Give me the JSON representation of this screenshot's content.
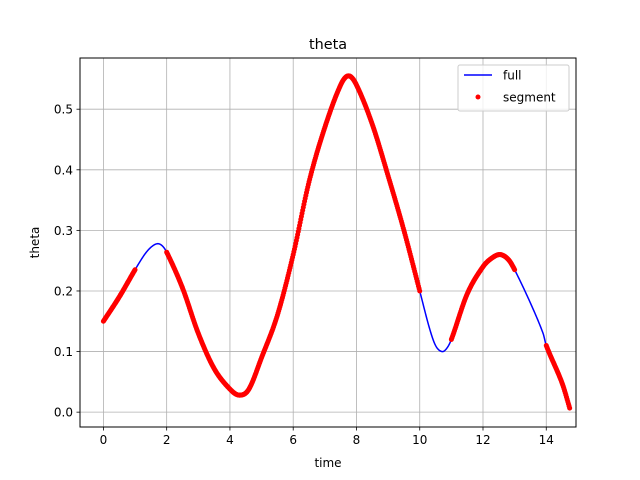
{
  "chart_data": {
    "type": "line",
    "title": "theta",
    "xlabel": "time",
    "ylabel": "theta",
    "xlim": [
      -0.74,
      14.94
    ],
    "ylim": [
      -0.0245,
      0.5845
    ],
    "xticks": [
      0,
      2,
      4,
      6,
      8,
      10,
      12,
      14
    ],
    "yticks": [
      0.0,
      0.1,
      0.2,
      0.3,
      0.4,
      0.5
    ],
    "xtick_labels": [
      "0",
      "2",
      "4",
      "6",
      "8",
      "10",
      "12",
      "14"
    ],
    "ytick_labels": [
      "0.0",
      "0.1",
      "0.2",
      "0.3",
      "0.4",
      "0.5"
    ],
    "grid": true,
    "legend_position": "top-right",
    "colors": {
      "full": "#0000ff",
      "segment": "#ff0000",
      "grid": "#b0b0b0"
    },
    "series": [
      {
        "name": "full",
        "style": "line",
        "points": [
          [
            0.0,
            0.15
          ],
          [
            0.5,
            0.19
          ],
          [
            1.0,
            0.235
          ],
          [
            1.3,
            0.26
          ],
          [
            1.5,
            0.272
          ],
          [
            1.7,
            0.278
          ],
          [
            1.85,
            0.275
          ],
          [
            2.0,
            0.264
          ],
          [
            2.5,
            0.205
          ],
          [
            3.0,
            0.13
          ],
          [
            3.5,
            0.072
          ],
          [
            4.0,
            0.038
          ],
          [
            4.3,
            0.028
          ],
          [
            4.6,
            0.038
          ],
          [
            5.0,
            0.09
          ],
          [
            5.5,
            0.16
          ],
          [
            6.0,
            0.26
          ],
          [
            6.5,
            0.38
          ],
          [
            7.0,
            0.47
          ],
          [
            7.5,
            0.54
          ],
          [
            7.75,
            0.555
          ],
          [
            8.0,
            0.54
          ],
          [
            8.5,
            0.475
          ],
          [
            9.0,
            0.39
          ],
          [
            9.5,
            0.3
          ],
          [
            10.0,
            0.2
          ],
          [
            10.3,
            0.14
          ],
          [
            10.5,
            0.11
          ],
          [
            10.7,
            0.1
          ],
          [
            10.85,
            0.105
          ],
          [
            11.0,
            0.12
          ],
          [
            11.5,
            0.195
          ],
          [
            12.0,
            0.24
          ],
          [
            12.3,
            0.255
          ],
          [
            12.55,
            0.26
          ],
          [
            12.8,
            0.252
          ],
          [
            13.0,
            0.235
          ],
          [
            13.5,
            0.18
          ],
          [
            13.9,
            0.13
          ],
          [
            14.0,
            0.11
          ],
          [
            14.5,
            0.048
          ],
          [
            14.75,
            0.005
          ]
        ]
      },
      {
        "name": "segment",
        "style": "markers",
        "ranges": [
          [
            0.0,
            1.0
          ],
          [
            2.0,
            10.0
          ],
          [
            11.0,
            13.0
          ],
          [
            14.0,
            14.75
          ]
        ]
      }
    ]
  }
}
